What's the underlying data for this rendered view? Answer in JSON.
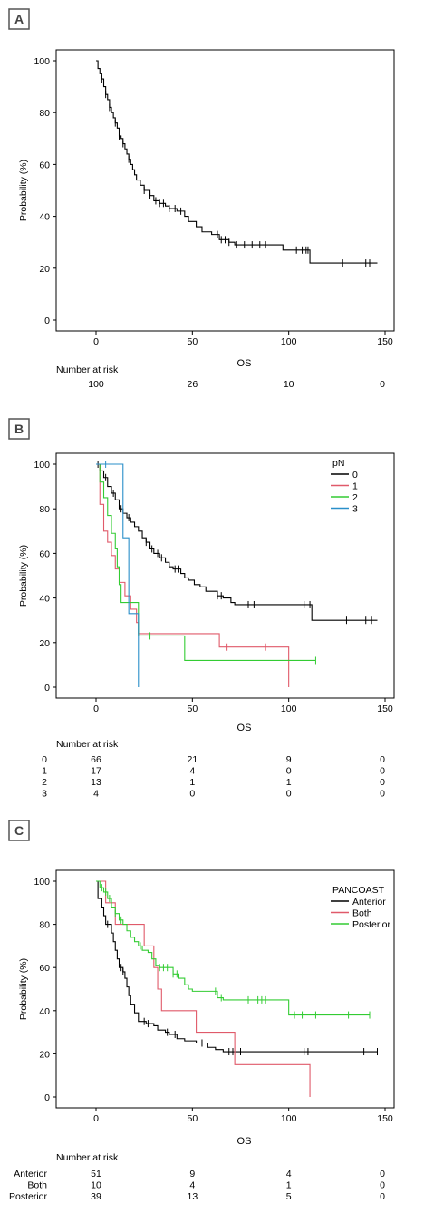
{
  "chart_data": [
    {
      "type": "line",
      "panel_label": "A",
      "title": "",
      "xlabel": "OS",
      "ylabel": "Probability (%)",
      "xlim": [
        0,
        150
      ],
      "ylim": [
        0,
        100
      ],
      "xticks": [
        "0",
        "50",
        "100",
        "150"
      ],
      "yticks": [
        "0",
        "20",
        "40",
        "60",
        "80",
        "100"
      ],
      "risk_table": {
        "title": "Number at risk",
        "times": [
          0,
          50,
          100,
          150
        ],
        "rows": [
          {
            "label": "",
            "values": [
              "100",
              "26",
              "10",
              "0"
            ]
          }
        ]
      },
      "series": [
        {
          "name": "",
          "color": "#000000",
          "steps": [
            [
              0,
              100
            ],
            [
              1,
              97
            ],
            [
              2,
              95
            ],
            [
              3,
              93
            ],
            [
              4,
              90
            ],
            [
              5,
              87
            ],
            [
              6,
              85
            ],
            [
              7,
              82
            ],
            [
              8,
              80
            ],
            [
              9,
              78
            ],
            [
              10,
              76
            ],
            [
              11,
              74
            ],
            [
              12,
              71
            ],
            [
              13,
              70
            ],
            [
              14,
              68
            ],
            [
              15,
              66
            ],
            [
              16,
              64
            ],
            [
              17,
              62
            ],
            [
              18,
              60
            ],
            [
              19,
              58
            ],
            [
              20,
              56
            ],
            [
              21,
              54
            ],
            [
              23,
              52
            ],
            [
              25,
              50
            ],
            [
              28,
              48
            ],
            [
              30,
              46
            ],
            [
              33,
              45
            ],
            [
              36,
              44
            ],
            [
              38,
              43
            ],
            [
              42,
              42
            ],
            [
              46,
              40
            ],
            [
              48,
              38
            ],
            [
              52,
              36
            ],
            [
              55,
              34
            ],
            [
              60,
              33
            ],
            [
              64,
              31
            ],
            [
              69,
              30
            ],
            [
              72,
              29
            ],
            [
              92,
              29
            ],
            [
              97,
              27
            ],
            [
              110,
              27
            ],
            [
              111,
              22
            ],
            [
              146,
              22
            ]
          ],
          "censor": [
            3,
            5,
            7,
            10,
            12,
            14,
            17,
            25,
            28,
            31,
            33,
            35,
            38,
            41,
            44,
            63,
            65,
            67,
            69,
            73,
            77,
            81,
            85,
            88,
            104,
            107,
            109,
            110,
            128,
            140,
            142
          ]
        }
      ]
    },
    {
      "type": "line",
      "panel_label": "B",
      "title": "",
      "xlabel": "OS",
      "ylabel": "Probability (%)",
      "xlim": [
        0,
        150
      ],
      "ylim": [
        0,
        100
      ],
      "xticks": [
        "0",
        "50",
        "100",
        "150"
      ],
      "yticks": [
        "0",
        "20",
        "40",
        "60",
        "80",
        "100"
      ],
      "legend": {
        "title": "pN",
        "position": "top-right"
      },
      "risk_table": {
        "title": "Number at risk",
        "times": [
          0,
          50,
          100,
          150
        ],
        "rows": [
          {
            "label": "0",
            "values": [
              "66",
              "21",
              "9",
              "0"
            ]
          },
          {
            "label": "1",
            "values": [
              "17",
              "4",
              "0",
              "0"
            ]
          },
          {
            "label": "2",
            "values": [
              "13",
              "1",
              "1",
              "0"
            ]
          },
          {
            "label": "3",
            "values": [
              "4",
              "0",
              "0",
              "0"
            ]
          }
        ]
      },
      "series": [
        {
          "name": "0",
          "color": "#000000",
          "steps": [
            [
              0,
              100
            ],
            [
              2,
              97
            ],
            [
              4,
              94
            ],
            [
              6,
              90
            ],
            [
              8,
              87
            ],
            [
              10,
              84
            ],
            [
              12,
              80
            ],
            [
              14,
              78
            ],
            [
              16,
              76
            ],
            [
              18,
              74
            ],
            [
              20,
              72
            ],
            [
              22,
              70
            ],
            [
              24,
              67
            ],
            [
              26,
              65
            ],
            [
              28,
              62
            ],
            [
              30,
              60
            ],
            [
              33,
              58
            ],
            [
              36,
              56
            ],
            [
              38,
              54
            ],
            [
              40,
              53
            ],
            [
              44,
              51
            ],
            [
              46,
              49
            ],
            [
              48,
              48
            ],
            [
              51,
              46
            ],
            [
              54,
              45
            ],
            [
              57,
              43
            ],
            [
              63,
              41
            ],
            [
              66,
              40
            ],
            [
              70,
              38
            ],
            [
              72,
              37
            ],
            [
              111,
              37
            ],
            [
              112,
              30
            ],
            [
              146,
              30
            ]
          ],
          "censor": [
            1,
            5,
            9,
            13,
            17,
            26,
            29,
            32,
            34,
            41,
            43,
            63,
            65,
            79,
            82,
            108,
            111,
            130,
            140,
            143
          ]
        },
        {
          "name": "1",
          "color": "#e05a6a",
          "steps": [
            [
              0,
              100
            ],
            [
              2,
              82
            ],
            [
              4,
              70
            ],
            [
              6,
              65
            ],
            [
              8,
              59
            ],
            [
              10,
              53
            ],
            [
              12,
              47
            ],
            [
              15,
              41
            ],
            [
              18,
              35
            ],
            [
              21,
              29
            ],
            [
              22,
              24
            ],
            [
              63,
              24
            ],
            [
              64,
              18
            ],
            [
              100,
              18
            ],
            [
              100,
              0
            ]
          ],
          "censor": [
            68,
            88
          ]
        },
        {
          "name": "2",
          "color": "#33cc33",
          "steps": [
            [
              0,
              100
            ],
            [
              2,
              92
            ],
            [
              4,
              85
            ],
            [
              6,
              77
            ],
            [
              8,
              69
            ],
            [
              10,
              62
            ],
            [
              11,
              54
            ],
            [
              12,
              46
            ],
            [
              13,
              38
            ],
            [
              21,
              38
            ],
            [
              22,
              23
            ],
            [
              45,
              23
            ],
            [
              46,
              12
            ],
            [
              114,
              12
            ]
          ],
          "censor": [
            28,
            114
          ]
        },
        {
          "name": "3",
          "color": "#2a8fc9",
          "steps": [
            [
              0,
              100
            ],
            [
              13,
              100
            ],
            [
              14,
              67
            ],
            [
              16,
              67
            ],
            [
              17,
              33
            ],
            [
              21,
              33
            ],
            [
              22,
              0
            ]
          ],
          "censor": [
            5
          ]
        }
      ]
    },
    {
      "type": "line",
      "panel_label": "C",
      "title": "",
      "xlabel": "OS",
      "ylabel": "Probability (%)",
      "xlim": [
        0,
        150
      ],
      "ylim": [
        0,
        100
      ],
      "xticks": [
        "0",
        "50",
        "100",
        "150"
      ],
      "yticks": [
        "0",
        "20",
        "40",
        "60",
        "80",
        "100"
      ],
      "legend": {
        "title": "PANCOAST",
        "position": "top-right"
      },
      "risk_table": {
        "title": "Number at risk",
        "times": [
          0,
          50,
          100,
          150
        ],
        "rows": [
          {
            "label": "Anterior",
            "values": [
              "51",
              "9",
              "4",
              "0"
            ]
          },
          {
            "label": "Both",
            "values": [
              "10",
              "4",
              "1",
              "0"
            ]
          },
          {
            "label": "Posterior",
            "values": [
              "39",
              "13",
              "5",
              "0"
            ]
          }
        ]
      },
      "series": [
        {
          "name": "Anterior",
          "color": "#000000",
          "steps": [
            [
              0,
              100
            ],
            [
              1,
              92
            ],
            [
              3,
              88
            ],
            [
              4,
              84
            ],
            [
              5,
              80
            ],
            [
              8,
              76
            ],
            [
              9,
              72
            ],
            [
              10,
              68
            ],
            [
              11,
              64
            ],
            [
              12,
              60
            ],
            [
              14,
              58
            ],
            [
              15,
              55
            ],
            [
              16,
              51
            ],
            [
              17,
              47
            ],
            [
              18,
              43
            ],
            [
              20,
              39
            ],
            [
              22,
              35
            ],
            [
              26,
              34
            ],
            [
              30,
              33
            ],
            [
              32,
              31
            ],
            [
              36,
              30
            ],
            [
              38,
              29
            ],
            [
              42,
              27
            ],
            [
              46,
              26
            ],
            [
              52,
              25
            ],
            [
              58,
              23
            ],
            [
              62,
              22
            ],
            [
              66,
              21
            ],
            [
              146,
              21
            ]
          ],
          "censor": [
            6,
            13,
            14,
            25,
            27,
            37,
            41,
            55,
            69,
            71,
            75,
            108,
            110,
            139,
            146
          ]
        },
        {
          "name": "Both",
          "color": "#e05a6a",
          "steps": [
            [
              0,
              100
            ],
            [
              5,
              90
            ],
            [
              10,
              80
            ],
            [
              22,
              80
            ],
            [
              25,
              70
            ],
            [
              28,
              70
            ],
            [
              30,
              60
            ],
            [
              32,
              50
            ],
            [
              34,
              40
            ],
            [
              50,
              40
            ],
            [
              52,
              30
            ],
            [
              70,
              30
            ],
            [
              72,
              15
            ],
            [
              110,
              15
            ],
            [
              111,
              0
            ]
          ],
          "censor": []
        },
        {
          "name": "Posterior",
          "color": "#33cc33",
          "steps": [
            [
              0,
              100
            ],
            [
              2,
              97
            ],
            [
              4,
              95
            ],
            [
              6,
              92
            ],
            [
              8,
              88
            ],
            [
              10,
              85
            ],
            [
              12,
              82
            ],
            [
              14,
              80
            ],
            [
              16,
              77
            ],
            [
              18,
              74
            ],
            [
              20,
              72
            ],
            [
              22,
              70
            ],
            [
              24,
              68
            ],
            [
              27,
              67
            ],
            [
              29,
              64
            ],
            [
              31,
              61
            ],
            [
              33,
              60
            ],
            [
              40,
              57
            ],
            [
              43,
              55
            ],
            [
              46,
              52
            ],
            [
              48,
              50
            ],
            [
              50,
              49
            ],
            [
              62,
              49
            ],
            [
              63,
              46
            ],
            [
              66,
              45
            ],
            [
              99,
              45
            ],
            [
              100,
              38
            ],
            [
              142,
              38
            ]
          ],
          "censor": [
            3,
            5,
            7,
            10,
            13,
            23,
            33,
            35,
            37,
            40,
            42,
            62,
            65,
            79,
            84,
            86,
            88,
            103,
            107,
            114,
            131,
            142
          ]
        }
      ]
    }
  ]
}
